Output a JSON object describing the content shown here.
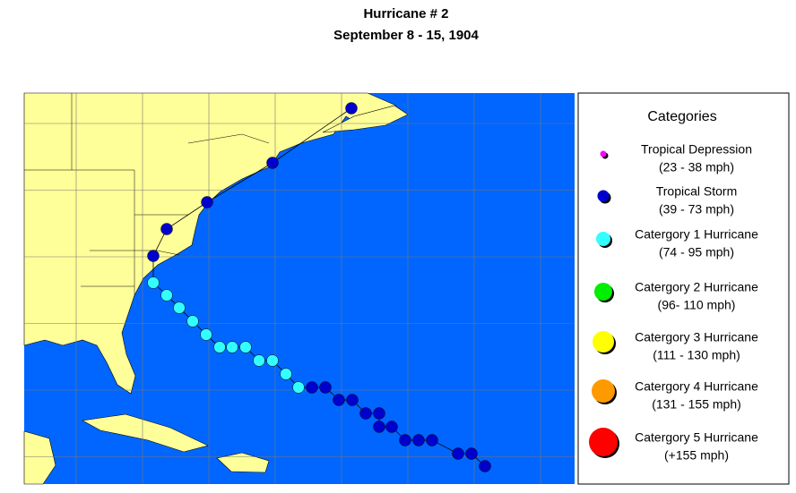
{
  "header": {
    "title": "Hurricane # 2",
    "subtitle": "September 8 - 15, 1904"
  },
  "legend": {
    "title": "Categories",
    "items": [
      {
        "label": "Tropical Depression",
        "range": "(23 - 38 mph)",
        "color": "#ff00ff"
      },
      {
        "label": "Tropical Storm",
        "range": "(39 - 73 mph)",
        "color": "#0000cc"
      },
      {
        "label": "Catergory 1 Hurricane",
        "range": "(74 - 95 mph)",
        "color": "#33ffff"
      },
      {
        "label": "Catergory 2 Hurricane",
        "range": "(96- 110 mph)",
        "color": "#00ee00"
      },
      {
        "label": "Catergory 3 Hurricane",
        "range": "(111 - 130 mph)",
        "color": "#ffff00"
      },
      {
        "label": "Catergory 4 Hurricane",
        "range": "(131 - 155 mph)",
        "color": "#ff9900"
      },
      {
        "label": "Catergory 5 Hurricane",
        "range": "(+155 mph)",
        "color": "#ff0000"
      }
    ]
  }
}
